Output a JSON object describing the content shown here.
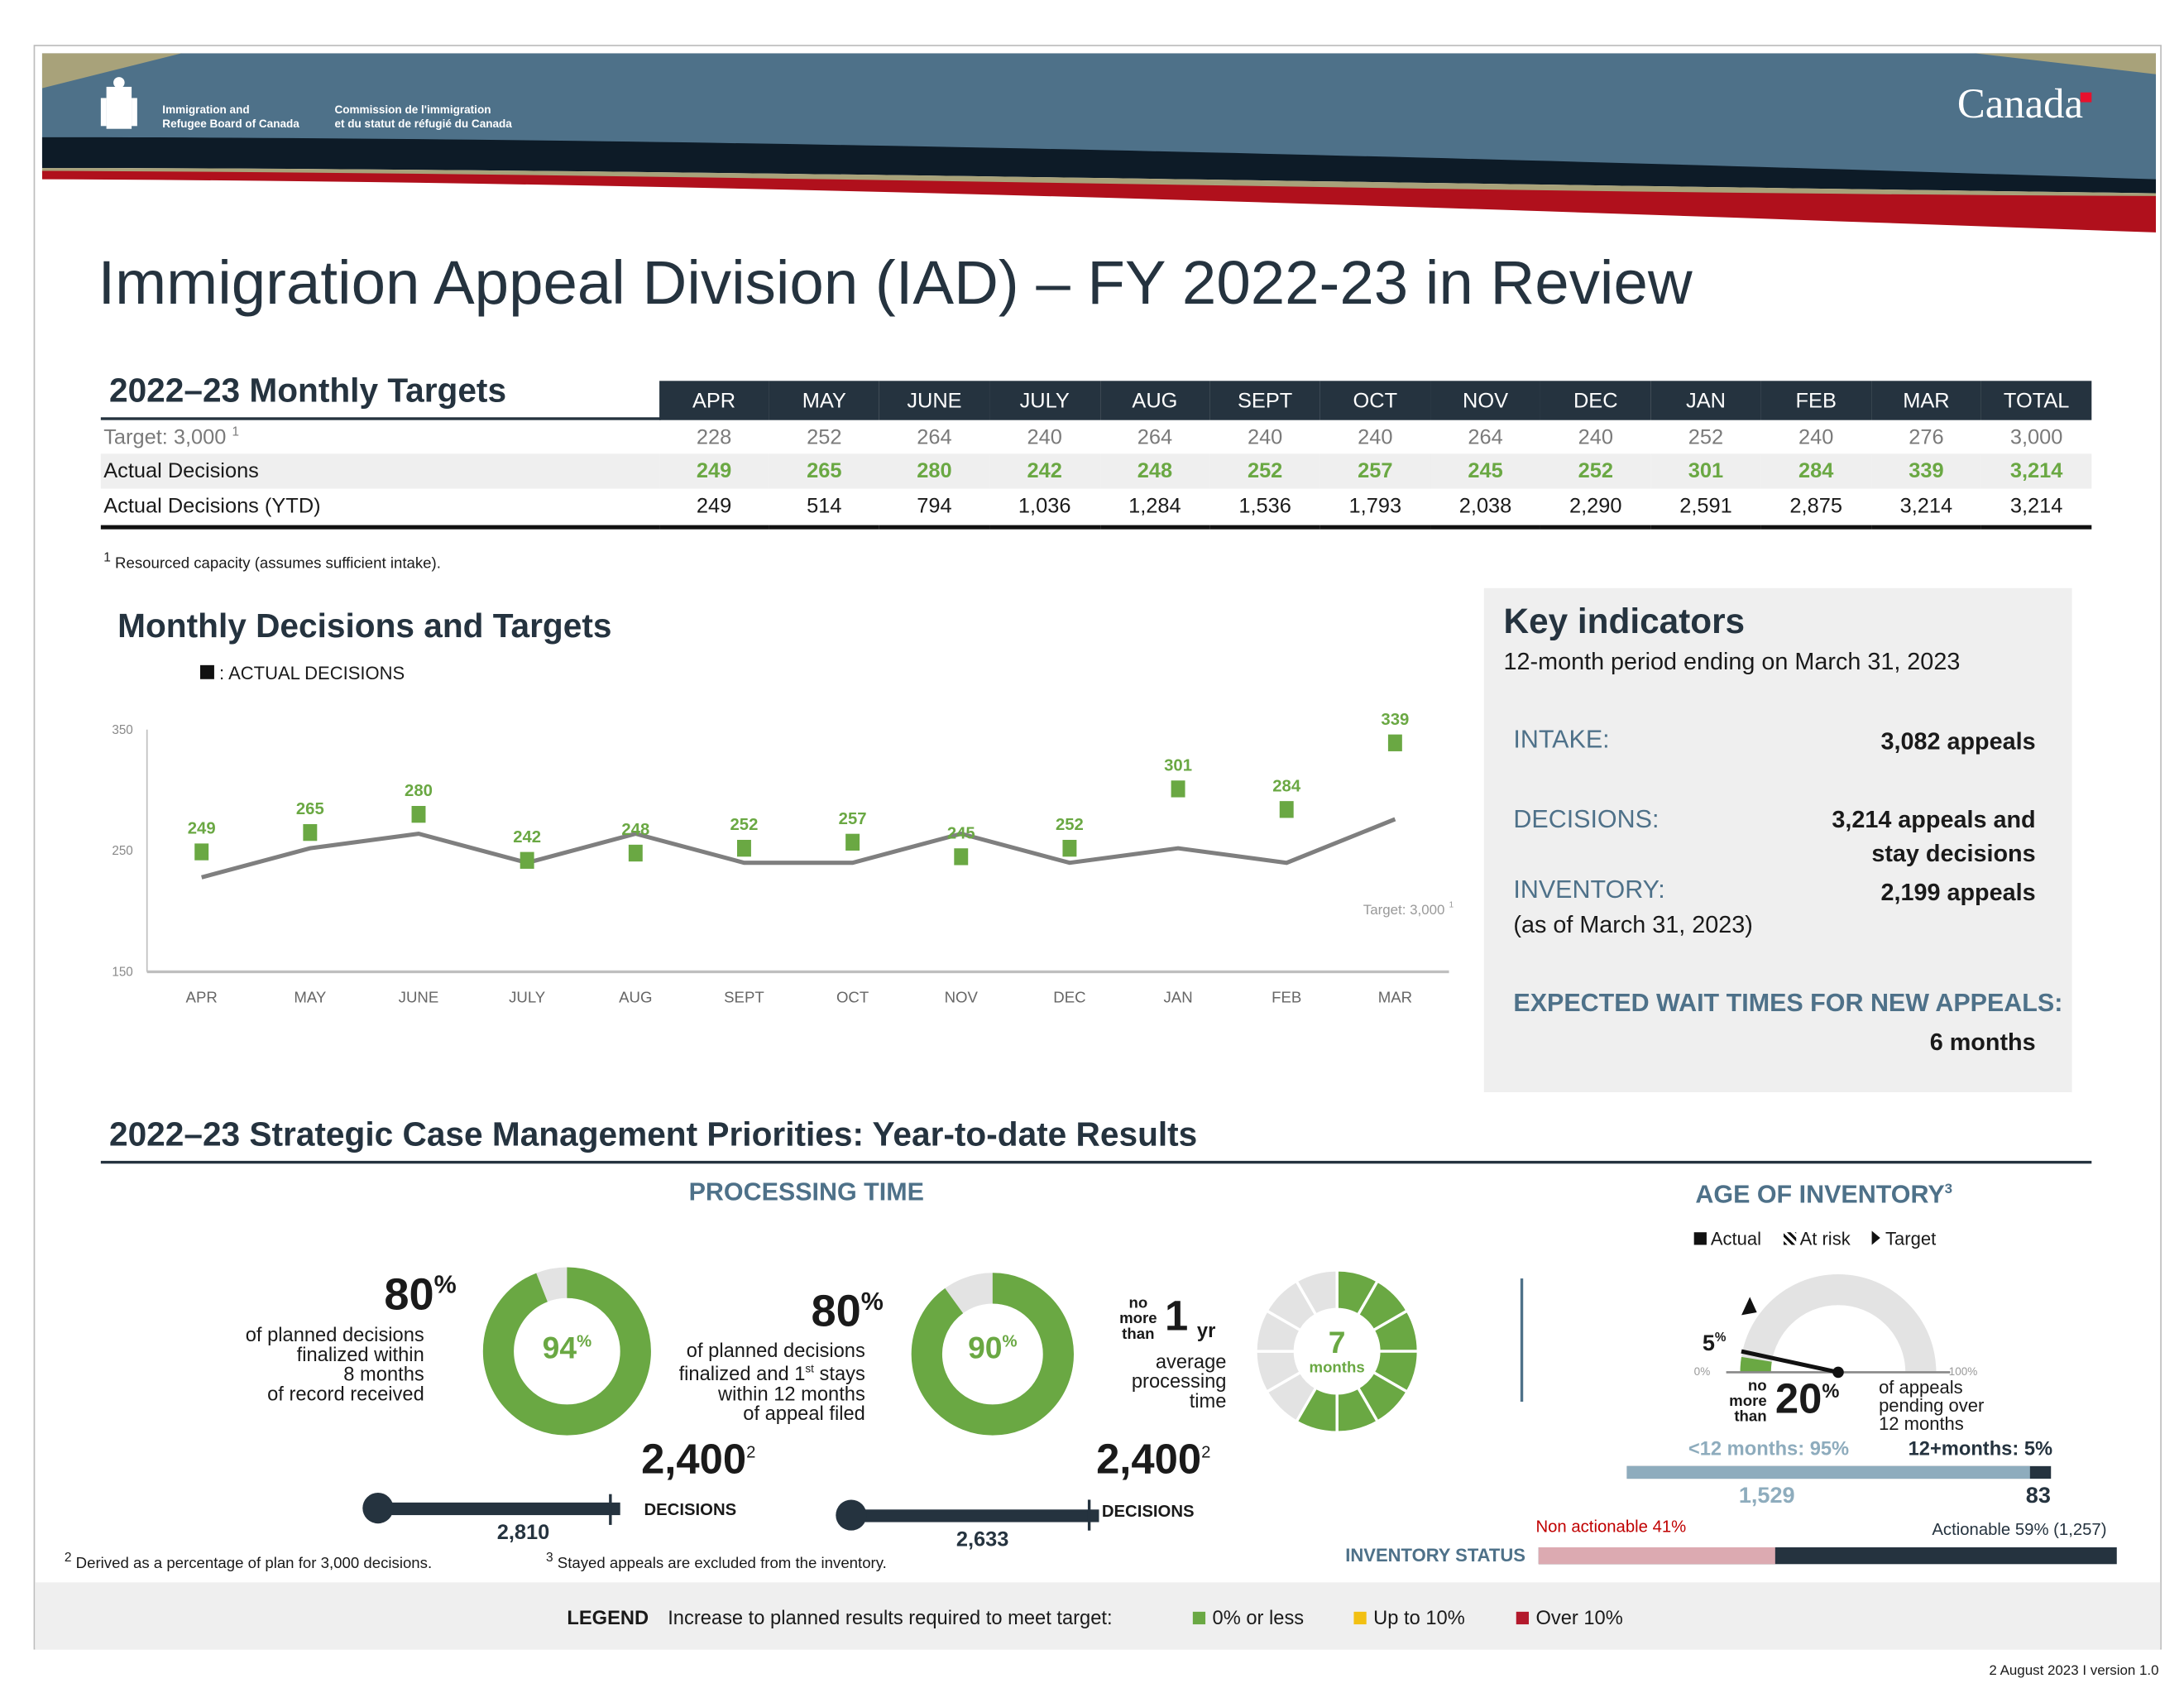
{
  "header": {
    "org_en_1": "Immigration and",
    "org_en_2": "Refugee Board of Canada",
    "org_fr_1": "Commission de l'immigration",
    "org_fr_2": "et du statut de réfugié du Canada",
    "wordmark": "Canada"
  },
  "title": "Immigration Appeal Division (IAD) – FY 2022-23 in Review",
  "targets_table": {
    "title": "2022–23 Monthly Targets",
    "columns": [
      "APR",
      "MAY",
      "JUNE",
      "JULY",
      "AUG",
      "SEPT",
      "OCT",
      "NOV",
      "DEC",
      "JAN",
      "FEB",
      "MAR",
      "TOTAL"
    ],
    "rows": [
      {
        "label": "Target: 3,000",
        "sup": "1",
        "values": [
          "228",
          "252",
          "264",
          "240",
          "264",
          "240",
          "240",
          "264",
          "240",
          "252",
          "240",
          "276",
          "3,000"
        ]
      },
      {
        "label": "Actual Decisions",
        "values": [
          "249",
          "265",
          "280",
          "242",
          "248",
          "252",
          "257",
          "245",
          "252",
          "301",
          "284",
          "339",
          "3,214"
        ]
      },
      {
        "label": "Actual Decisions (YTD)",
        "values": [
          "249",
          "514",
          "794",
          "1,036",
          "1,284",
          "1,536",
          "1,793",
          "2,038",
          "2,290",
          "2,591",
          "2,875",
          "3,214",
          "3,214"
        ]
      }
    ],
    "footnote_sup": "1",
    "footnote": "Resourced capacity (assumes sufficient intake)."
  },
  "chart_data": {
    "type": "line",
    "title": "Monthly Decisions and Targets",
    "legend": ": ACTUAL DECISIONS",
    "categories": [
      "APR",
      "MAY",
      "JUNE",
      "JULY",
      "AUG",
      "SEPT",
      "OCT",
      "NOV",
      "DEC",
      "JAN",
      "FEB",
      "MAR"
    ],
    "series": [
      {
        "name": "ACTUAL DECISIONS",
        "kind": "marker",
        "values": [
          249,
          265,
          280,
          242,
          248,
          252,
          257,
          245,
          252,
          301,
          284,
          339
        ]
      },
      {
        "name": "Target: 3,000",
        "sup": "1",
        "kind": "line",
        "values": [
          228,
          252,
          264,
          240,
          264,
          240,
          240,
          264,
          240,
          252,
          240,
          276
        ]
      }
    ],
    "yticks": [
      "350",
      "250",
      "150"
    ],
    "ylim": [
      150,
      350
    ],
    "grid": false,
    "colors": {
      "actual": "#6aa843",
      "target": "#7f7f7f"
    }
  },
  "key_indicators": {
    "title": "Key indicators",
    "subtitle": "12-month period ending on March 31, 2023",
    "intake_label": "INTAKE:",
    "intake_value": "3,082 appeals",
    "decisions_label": "DECISIONS:",
    "decisions_value_1": "3,214 appeals and",
    "decisions_value_2": "stay decisions",
    "inventory_label": "INVENTORY:",
    "inventory_note": "(as of March 31, 2023)",
    "inventory_value": "2,199 appeals",
    "wait_label": "EXPECTED WAIT TIMES FOR NEW APPEALS:",
    "wait_value": "6 months"
  },
  "priorities": {
    "title": "2022–23 Strategic Case Management Priorities: Year-to-date Results",
    "processing_title": "PROCESSING TIME",
    "kpi1": {
      "target": "80",
      "unit": "%",
      "desc": [
        "of planned decisions",
        "finalized within",
        "8 months",
        "of record received"
      ],
      "actual": 94,
      "actual_label": "94",
      "planned": "2,400",
      "planned_sup": "2",
      "decisions_label": "DECISIONS",
      "count": "2,810",
      "progress": 1.171
    },
    "kpi2": {
      "target": "80",
      "unit": "%",
      "desc": [
        "of planned decisions",
        "finalized and 1",
        "st",
        " stays",
        "within 12 months",
        "of appeal filed"
      ],
      "actual": 90,
      "actual_label": "90",
      "planned": "2,400",
      "planned_sup": "2",
      "decisions_label": "DECISIONS",
      "count": "2,633",
      "progress": 1.097
    },
    "kpi3": {
      "pre": [
        "no",
        "more",
        "than"
      ],
      "value": "1",
      "unit": "yr",
      "desc": [
        "average",
        "processing",
        "time"
      ],
      "actual": 7,
      "actual_unit": "months",
      "segments": 12
    },
    "age": {
      "title": "AGE OF INVENTORY",
      "title_sup": "3",
      "legend": [
        "Actual",
        "At risk",
        "Target"
      ],
      "actual_pct": "5",
      "actual": 5,
      "target": 20,
      "min": "0%",
      "max": "100%",
      "pre": [
        "no",
        "more",
        "than"
      ],
      "target_label": "20",
      "desc": [
        "of appeals",
        "pending over",
        "12 months"
      ],
      "under_label": "<12 months: 95%",
      "over_label": "12+months: 5%",
      "under_count": "1,529",
      "over_count": "83",
      "under_share": 95
    },
    "status": {
      "label": "INVENTORY STATUS",
      "non_actionable": "Non actionable  41%",
      "actionable": "Actionable  59% (1,257)",
      "non_share": 41
    },
    "footnote2_sup": "2",
    "footnote2": "Derived as a percentage of plan for 3,000 decisions.",
    "footnote3_sup": "3",
    "footnote3": "Stayed appeals are excluded from the inventory."
  },
  "legend": {
    "title": "LEGEND",
    "desc": "Increase to planned results required to meet target:",
    "items": [
      {
        "label": "0% or less",
        "color": "#6aa843"
      },
      {
        "label": "Up to 10%",
        "color": "#f2c012"
      },
      {
        "label": "Over 10%",
        "color": "#b3192c"
      }
    ]
  },
  "version": "2 August 2023 I version 1.0"
}
